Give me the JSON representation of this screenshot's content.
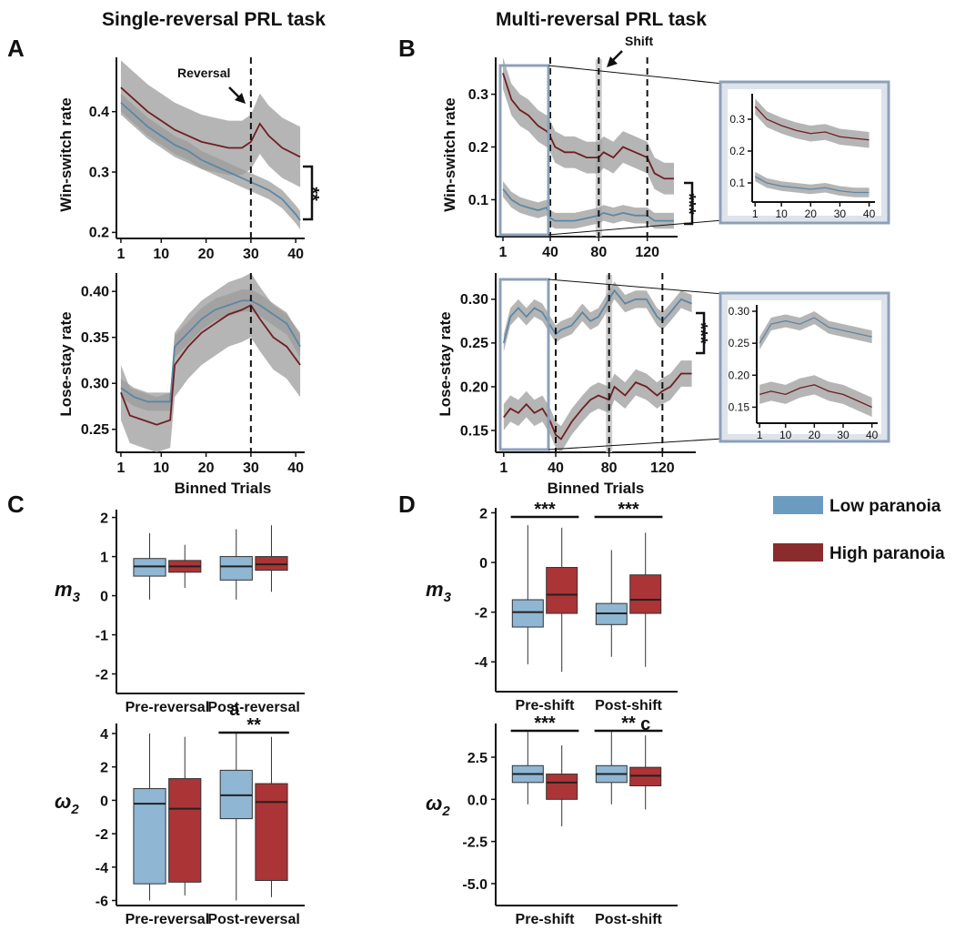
{
  "titles": {
    "single": "Single-reversal PRL task",
    "multi": "Multi-reversal PRL task"
  },
  "panel_labels": {
    "a": "A",
    "b": "B",
    "c": "C",
    "d": "D"
  },
  "annotations": {
    "reversal": "Reversal",
    "shift": "Shift",
    "letter_a": "a",
    "letter_c": "c"
  },
  "axis_labels": {
    "win_switch": "Win-switch rate",
    "lose_stay": "Lose-stay rate",
    "binned_trials": "Binned Trials",
    "m3": "m",
    "m3_sub": "3",
    "omega2": "ω",
    "omega2_sub": "2"
  },
  "legend": {
    "low": "Low paranoia",
    "high": "High paranoia"
  },
  "colors": {
    "low_line": "#5b87a6",
    "high_line": "#6e1f22",
    "band": "#9c9c9c",
    "low_box": "#8fb6d3",
    "high_box": "#ab3437",
    "legend_low": "#6b9cc0",
    "legend_high": "#8a2b2d"
  },
  "chart_data": [
    {
      "id": "A_top",
      "type": "line",
      "title": "Single-reversal PRL task",
      "ylabel": "Win-switch rate",
      "xlim": [
        0,
        42
      ],
      "ylim": [
        0.19,
        0.49
      ],
      "xticks": [
        "1",
        "10",
        "20",
        "30",
        "40"
      ],
      "yticks": [
        "0.2",
        "0.3",
        "0.4"
      ],
      "vline_x": 30,
      "vline_label": "Reversal",
      "significance": "**",
      "series": [
        {
          "name": "Low paranoia",
          "x": [
            1,
            4,
            7,
            10,
            13,
            16,
            19,
            22,
            25,
            28,
            31,
            34,
            37,
            40,
            41
          ],
          "y": [
            0.415,
            0.395,
            0.375,
            0.36,
            0.345,
            0.335,
            0.32,
            0.31,
            0.3,
            0.29,
            0.28,
            0.27,
            0.255,
            0.23,
            0.22
          ],
          "band": [
            0.015,
            0.015,
            0.015,
            0.015,
            0.015,
            0.015,
            0.015,
            0.015,
            0.015,
            0.015,
            0.015,
            0.015,
            0.015,
            0.015,
            0.015
          ]
        },
        {
          "name": "High paranoia",
          "x": [
            1,
            4,
            7,
            10,
            13,
            16,
            19,
            22,
            25,
            28,
            30,
            32,
            34,
            37,
            41
          ],
          "y": [
            0.44,
            0.42,
            0.4,
            0.385,
            0.37,
            0.36,
            0.35,
            0.345,
            0.34,
            0.34,
            0.35,
            0.38,
            0.36,
            0.34,
            0.325
          ],
          "band": [
            0.045,
            0.045,
            0.045,
            0.045,
            0.045,
            0.045,
            0.045,
            0.045,
            0.045,
            0.045,
            0.045,
            0.05,
            0.05,
            0.05,
            0.05
          ]
        }
      ]
    },
    {
      "id": "A_bottom",
      "type": "line",
      "ylabel": "Lose-stay rate",
      "xlabel": "Binned Trials",
      "xlim": [
        0,
        42
      ],
      "ylim": [
        0.225,
        0.42
      ],
      "xticks": [
        "1",
        "10",
        "20",
        "30",
        "40"
      ],
      "yticks": [
        "0.25",
        "0.30",
        "0.35",
        "0.40"
      ],
      "vline_x": 30,
      "series": [
        {
          "name": "Low paranoia",
          "x": [
            1,
            4,
            7,
            10,
            12,
            13,
            16,
            19,
            22,
            25,
            28,
            30,
            32,
            35,
            38,
            41
          ],
          "y": [
            0.295,
            0.285,
            0.28,
            0.28,
            0.28,
            0.34,
            0.355,
            0.37,
            0.38,
            0.385,
            0.39,
            0.39,
            0.385,
            0.375,
            0.365,
            0.34
          ],
          "band": [
            0.01,
            0.01,
            0.01,
            0.01,
            0.01,
            0.012,
            0.012,
            0.012,
            0.012,
            0.012,
            0.012,
            0.012,
            0.012,
            0.012,
            0.012,
            0.012
          ]
        },
        {
          "name": "High paranoia",
          "x": [
            1,
            3,
            6,
            9,
            12,
            13,
            16,
            19,
            22,
            25,
            28,
            30,
            32,
            35,
            38,
            41
          ],
          "y": [
            0.29,
            0.265,
            0.26,
            0.255,
            0.26,
            0.32,
            0.34,
            0.355,
            0.365,
            0.375,
            0.38,
            0.385,
            0.37,
            0.35,
            0.34,
            0.32
          ],
          "band": [
            0.03,
            0.03,
            0.03,
            0.03,
            0.03,
            0.035,
            0.035,
            0.035,
            0.035,
            0.035,
            0.035,
            0.035,
            0.035,
            0.035,
            0.035,
            0.035
          ]
        }
      ]
    },
    {
      "id": "B_top",
      "type": "line",
      "title": "Multi-reversal PRL task",
      "ylabel": "Win-switch rate",
      "xlim": [
        -5,
        145
      ],
      "ylim": [
        0.03,
        0.37
      ],
      "xticks": [
        "1",
        "40",
        "80",
        "120"
      ],
      "yticks": [
        "0.1",
        "0.2",
        "0.3"
      ],
      "vlines_x": [
        40,
        80,
        120
      ],
      "shift_bar_x": 80,
      "shift_label": "Shift",
      "significance": "***",
      "series": [
        {
          "name": "Low paranoia",
          "x": [
            1,
            8,
            15,
            22,
            30,
            37,
            40,
            44,
            52,
            60,
            70,
            80,
            84,
            92,
            100,
            110,
            120,
            126,
            134,
            142
          ],
          "y": [
            0.12,
            0.1,
            0.09,
            0.085,
            0.08,
            0.085,
            0.065,
            0.06,
            0.06,
            0.06,
            0.065,
            0.07,
            0.075,
            0.07,
            0.075,
            0.07,
            0.07,
            0.06,
            0.06,
            0.06
          ],
          "band": [
            0.015,
            0.015,
            0.015,
            0.015,
            0.015,
            0.015,
            0.015,
            0.015,
            0.015,
            0.015,
            0.015,
            0.015,
            0.015,
            0.015,
            0.015,
            0.015,
            0.015,
            0.015,
            0.015,
            0.015
          ]
        },
        {
          "name": "High paranoia",
          "x": [
            1,
            8,
            15,
            22,
            30,
            37,
            40,
            44,
            52,
            60,
            70,
            80,
            84,
            92,
            100,
            110,
            120,
            126,
            134,
            142
          ],
          "y": [
            0.34,
            0.29,
            0.27,
            0.26,
            0.24,
            0.23,
            0.22,
            0.2,
            0.19,
            0.19,
            0.18,
            0.18,
            0.19,
            0.18,
            0.2,
            0.19,
            0.18,
            0.15,
            0.14,
            0.14
          ],
          "band": [
            0.03,
            0.03,
            0.03,
            0.03,
            0.03,
            0.03,
            0.03,
            0.03,
            0.03,
            0.03,
            0.03,
            0.03,
            0.03,
            0.03,
            0.03,
            0.03,
            0.03,
            0.03,
            0.03,
            0.03
          ]
        }
      ]
    },
    {
      "id": "B_top_inset",
      "type": "line",
      "xlim": [
        0,
        42
      ],
      "ylim": [
        0.04,
        0.38
      ],
      "xticks": [
        "1",
        "10",
        "20",
        "30",
        "40"
      ],
      "yticks": [
        "0.1",
        "0.2",
        "0.3"
      ],
      "series": [
        {
          "name": "Low paranoia",
          "x": [
            1,
            5,
            10,
            15,
            20,
            25,
            30,
            35,
            40
          ],
          "y": [
            0.12,
            0.1,
            0.09,
            0.085,
            0.08,
            0.085,
            0.075,
            0.07,
            0.07
          ],
          "band": [
            0.015,
            0.015,
            0.015,
            0.015,
            0.015,
            0.015,
            0.015,
            0.015,
            0.015
          ]
        },
        {
          "name": "High paranoia",
          "x": [
            1,
            5,
            10,
            15,
            20,
            25,
            30,
            35,
            40
          ],
          "y": [
            0.34,
            0.3,
            0.28,
            0.265,
            0.255,
            0.26,
            0.245,
            0.24,
            0.235
          ],
          "band": [
            0.025,
            0.025,
            0.025,
            0.025,
            0.025,
            0.025,
            0.025,
            0.025,
            0.025
          ]
        }
      ]
    },
    {
      "id": "B_bottom",
      "type": "line",
      "ylabel": "Lose-stay rate",
      "xlabel": "Binned Trials",
      "xlim": [
        -5,
        145
      ],
      "ylim": [
        0.125,
        0.33
      ],
      "xticks": [
        "1",
        "40",
        "80",
        "120"
      ],
      "yticks": [
        "0.15",
        "0.20",
        "0.25",
        "0.30"
      ],
      "vlines_x": [
        40,
        80,
        120
      ],
      "shift_bar_x": 80,
      "significance": "***",
      "series": [
        {
          "name": "Low paranoia",
          "x": [
            1,
            6,
            12,
            18,
            24,
            30,
            36,
            40,
            44,
            52,
            60,
            66,
            72,
            80,
            84,
            92,
            100,
            108,
            116,
            120,
            126,
            134,
            142
          ],
          "y": [
            0.25,
            0.28,
            0.29,
            0.28,
            0.29,
            0.285,
            0.27,
            0.26,
            0.265,
            0.27,
            0.285,
            0.275,
            0.28,
            0.3,
            0.31,
            0.295,
            0.3,
            0.3,
            0.28,
            0.275,
            0.285,
            0.3,
            0.295
          ],
          "band": [
            0.01,
            0.01,
            0.01,
            0.01,
            0.01,
            0.01,
            0.01,
            0.01,
            0.01,
            0.01,
            0.01,
            0.01,
            0.01,
            0.01,
            0.01,
            0.01,
            0.01,
            0.01,
            0.01,
            0.01,
            0.01,
            0.01,
            0.01
          ]
        },
        {
          "name": "High paranoia",
          "x": [
            1,
            6,
            12,
            18,
            24,
            30,
            36,
            40,
            44,
            52,
            60,
            66,
            72,
            80,
            84,
            92,
            100,
            108,
            116,
            120,
            126,
            134,
            142
          ],
          "y": [
            0.165,
            0.175,
            0.17,
            0.18,
            0.17,
            0.175,
            0.16,
            0.145,
            0.14,
            0.16,
            0.175,
            0.185,
            0.19,
            0.185,
            0.2,
            0.19,
            0.205,
            0.2,
            0.19,
            0.195,
            0.2,
            0.215,
            0.215
          ],
          "band": [
            0.015,
            0.015,
            0.015,
            0.015,
            0.015,
            0.015,
            0.015,
            0.015,
            0.015,
            0.015,
            0.015,
            0.015,
            0.015,
            0.015,
            0.015,
            0.015,
            0.015,
            0.015,
            0.015,
            0.015,
            0.015,
            0.015,
            0.015
          ]
        }
      ]
    },
    {
      "id": "B_bottom_inset",
      "type": "line",
      "xlim": [
        0,
        42
      ],
      "ylim": [
        0.125,
        0.31
      ],
      "xticks": [
        "1",
        "10",
        "20",
        "30",
        "40"
      ],
      "yticks": [
        "0.15",
        "0.20",
        "0.25",
        "0.30"
      ],
      "series": [
        {
          "name": "Low paranoia",
          "x": [
            1,
            5,
            10,
            15,
            20,
            25,
            30,
            35,
            40
          ],
          "y": [
            0.25,
            0.28,
            0.285,
            0.28,
            0.29,
            0.275,
            0.27,
            0.265,
            0.26
          ],
          "band": [
            0.01,
            0.01,
            0.01,
            0.01,
            0.01,
            0.01,
            0.01,
            0.01,
            0.01
          ]
        },
        {
          "name": "High paranoia",
          "x": [
            1,
            5,
            10,
            15,
            20,
            25,
            30,
            35,
            40
          ],
          "y": [
            0.17,
            0.175,
            0.17,
            0.18,
            0.185,
            0.175,
            0.17,
            0.16,
            0.15
          ],
          "band": [
            0.015,
            0.015,
            0.015,
            0.015,
            0.015,
            0.015,
            0.015,
            0.015,
            0.015
          ]
        }
      ]
    },
    {
      "id": "C_top",
      "type": "box",
      "ylabel": "m3",
      "ylim": [
        -2.5,
        2.2
      ],
      "yticks": [
        "-2",
        "-1",
        "0",
        "1",
        "2"
      ],
      "categories": [
        "Pre-reversal",
        "Post-reversal"
      ],
      "boxes": [
        {
          "group": "Pre-reversal",
          "series": "Low paranoia",
          "min": -0.1,
          "q1": 0.5,
          "median": 0.75,
          "q3": 0.95,
          "max": 1.6
        },
        {
          "group": "Pre-reversal",
          "series": "High paranoia",
          "min": 0.2,
          "q1": 0.6,
          "median": 0.75,
          "q3": 0.9,
          "max": 1.3
        },
        {
          "group": "Post-reversal",
          "series": "Low paranoia",
          "min": -0.1,
          "q1": 0.4,
          "median": 0.75,
          "q3": 1.0,
          "max": 1.7
        },
        {
          "group": "Post-reversal",
          "series": "High paranoia",
          "min": 0.1,
          "q1": 0.65,
          "median": 0.8,
          "q3": 1.0,
          "max": 1.8
        }
      ]
    },
    {
      "id": "C_bottom",
      "type": "box",
      "ylabel": "ω2",
      "ylim": [
        -6.3,
        4.6
      ],
      "yticks": [
        "-6",
        "-4",
        "-2",
        "0",
        "2",
        "4"
      ],
      "categories": [
        "Pre-reversal",
        "Post-reversal"
      ],
      "significance_post": "**",
      "letter": "a",
      "boxes": [
        {
          "group": "Pre-reversal",
          "series": "Low paranoia",
          "min": -6.0,
          "q1": -5.0,
          "median": -0.2,
          "q3": 0.7,
          "max": 4.0
        },
        {
          "group": "Pre-reversal",
          "series": "High paranoia",
          "min": -5.7,
          "q1": -4.9,
          "median": -0.5,
          "q3": 1.3,
          "max": 3.8
        },
        {
          "group": "Post-reversal",
          "series": "Low paranoia",
          "min": -6.0,
          "q1": -1.1,
          "median": 0.3,
          "q3": 1.8,
          "max": 4.0
        },
        {
          "group": "Post-reversal",
          "series": "High paranoia",
          "min": -5.8,
          "q1": -4.8,
          "median": -0.1,
          "q3": 1.0,
          "max": 3.8
        }
      ]
    },
    {
      "id": "D_top",
      "type": "box",
      "ylabel": "m3",
      "ylim": [
        -5.2,
        2.2
      ],
      "yticks": [
        "-4",
        "-2",
        "0",
        "2"
      ],
      "categories": [
        "Pre-shift",
        "Post-shift"
      ],
      "significance_pre": "***",
      "significance_post": "***",
      "boxes": [
        {
          "group": "Pre-shift",
          "series": "Low paranoia",
          "min": -4.1,
          "q1": -2.6,
          "median": -2.0,
          "q3": -1.5,
          "max": 1.5
        },
        {
          "group": "Pre-shift",
          "series": "High paranoia",
          "min": -4.4,
          "q1": -2.05,
          "median": -1.3,
          "q3": -0.2,
          "max": 1.4
        },
        {
          "group": "Post-shift",
          "series": "Low paranoia",
          "min": -3.8,
          "q1": -2.5,
          "median": -2.05,
          "q3": -1.65,
          "max": 0.5
        },
        {
          "group": "Post-shift",
          "series": "High paranoia",
          "min": -4.2,
          "q1": -2.05,
          "median": -1.5,
          "q3": -0.5,
          "max": 1.2
        }
      ]
    },
    {
      "id": "D_bottom",
      "type": "box",
      "ylabel": "ω2",
      "ylim": [
        -6.3,
        4.5
      ],
      "yticks": [
        "-5.0",
        "-2.5",
        "0.0",
        "2.5"
      ],
      "categories": [
        "Pre-shift",
        "Post-shift"
      ],
      "significance_pre": "***",
      "significance_post": "**",
      "letter": "c",
      "boxes": [
        {
          "group": "Pre-shift",
          "series": "Low paranoia",
          "min": -0.3,
          "q1": 1.0,
          "median": 1.5,
          "q3": 2.0,
          "max": 4.0
        },
        {
          "group": "Pre-shift",
          "series": "High paranoia",
          "min": -1.6,
          "q1": 0.0,
          "median": 1.0,
          "q3": 1.5,
          "max": 3.2
        },
        {
          "group": "Post-shift",
          "series": "Low paranoia",
          "min": -0.3,
          "q1": 1.0,
          "median": 1.5,
          "q3": 2.0,
          "max": 4.0
        },
        {
          "group": "Post-shift",
          "series": "High paranoia",
          "min": -0.6,
          "q1": 0.8,
          "median": 1.4,
          "q3": 1.9,
          "max": 3.8
        }
      ]
    }
  ]
}
